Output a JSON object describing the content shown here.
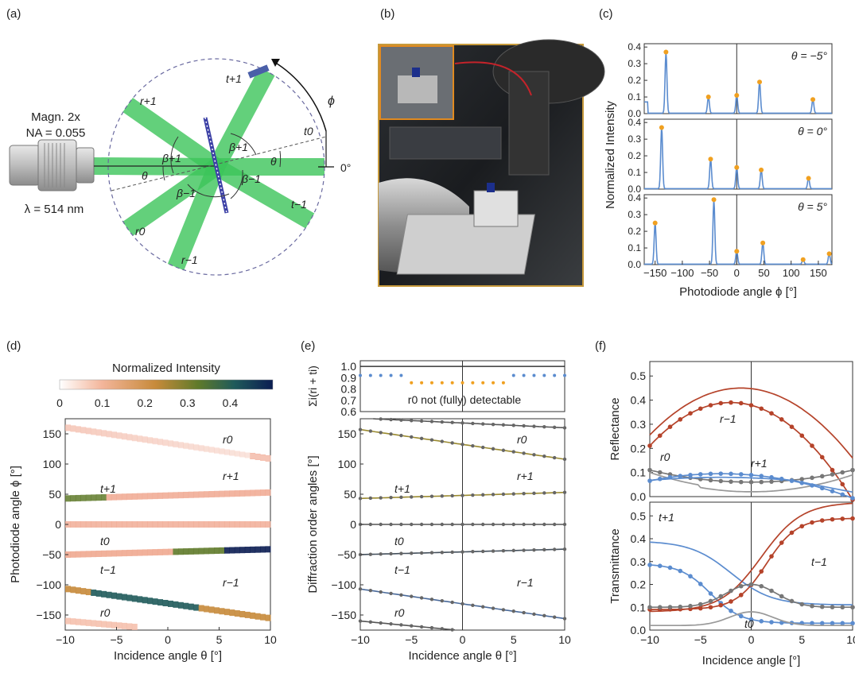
{
  "panel_labels": {
    "a": "(a)",
    "b": "(b)",
    "c": "(c)",
    "d": "(d)",
    "e": "(e)",
    "f": "(f)"
  },
  "colors": {
    "beam": "#3cc45a",
    "blue": "#5b8ccf",
    "orange": "#f0a020",
    "brown": "#b5432a",
    "gray": "#8a8a8a",
    "olive": "#9a8a30",
    "navy": "#102c5c"
  },
  "panel_a": {
    "objective_line1": "Magn. 2x",
    "objective_line2": "NA = 0.055",
    "wavelength": "λ = 514 nm",
    "phi": "ϕ",
    "zero_deg": "0°",
    "theta": "θ",
    "orders": {
      "t_p1": "t+1",
      "r_p1": "r+1",
      "t0": "t0",
      "r0": "r0",
      "t_m1": "t−1",
      "r_m1": "r−1"
    },
    "angles": {
      "beta_p1_a": "β+1",
      "beta_p1_b": "β+1",
      "beta_m1_a": "β−1",
      "beta_m1_b": "β−1",
      "theta_b": "θ"
    }
  },
  "chart_data": [
    {
      "id": "c",
      "type": "line",
      "xlabel": "Photodiode angle ϕ [°]",
      "ylabel": "Normalized Intensity",
      "xlim": [
        -170,
        175
      ],
      "ylim": [
        0,
        0.42
      ],
      "xticks": [
        "−150",
        "−100",
        "−50",
        "0",
        "50",
        "100",
        "150"
      ],
      "yticks": [
        "0.0",
        "0.1",
        "0.2",
        "0.3",
        "0.4"
      ],
      "subplots": [
        {
          "label": "θ = −5°",
          "peaks": [
            [
              -130,
              0.37
            ],
            [
              -52,
              0.1
            ],
            [
              0,
              0.11
            ],
            [
              42,
              0.19
            ],
            [
              140,
              0.085
            ]
          ]
        },
        {
          "label": "θ = 0°",
          "peaks": [
            [
              -138,
              0.37
            ],
            [
              -48,
              0.18
            ],
            [
              0,
              0.13
            ],
            [
              45,
              0.115
            ],
            [
              132,
              0.065
            ]
          ]
        },
        {
          "label": "θ = 5°",
          "peaks": [
            [
              -150,
              0.25
            ],
            [
              -42,
              0.39
            ],
            [
              0,
              0.08
            ],
            [
              48,
              0.13
            ],
            [
              122,
              0.03
            ],
            [
              170,
              0.065
            ]
          ]
        }
      ]
    },
    {
      "id": "d",
      "type": "heatmap",
      "title": "Normalized Intensity",
      "colorbar_ticks": [
        "0",
        "0.1",
        "0.2",
        "0.3",
        "0.4"
      ],
      "xlabel": "Incidence angle θ [°]",
      "ylabel": "Photodiode angle ϕ [°]",
      "xlim": [
        -10,
        10
      ],
      "ylim": [
        -175,
        175
      ],
      "xticks": [
        "−10",
        "−5",
        "0",
        "5",
        "10"
      ],
      "yticks": [
        "150",
        "100",
        "50",
        "0",
        "−50",
        "−100",
        "−150"
      ],
      "labels": {
        "r0_top": "r0",
        "r_p1": "r+1",
        "t_p1": "t+1",
        "t0": "t0",
        "t_m1": "t−1",
        "r_m1": "r−1",
        "r0_bot": "r0"
      }
    },
    {
      "id": "e",
      "type": "line",
      "top": {
        "ylabel": "Σi(ri + ti)",
        "ylim": [
          0.6,
          1.05
        ],
        "yticks": [
          "1.0",
          "0.9",
          "0.8",
          "0.7",
          "0.6"
        ],
        "note": "r0 not (fully) detectable",
        "points_blue": [
          -10,
          -9,
          -8,
          -7,
          -6,
          5,
          6,
          7,
          8,
          9,
          10
        ],
        "blue_value": 0.92,
        "points_orange": [
          -5,
          -4,
          -3,
          -2,
          -1,
          0,
          1,
          2,
          3,
          4
        ],
        "orange_value": 0.855
      },
      "bottom": {
        "xlabel": "Incidence angle θ [°]",
        "ylabel": "Diffraction order angles [°]",
        "xlim": [
          -10,
          10
        ],
        "ylim": [
          -175,
          175
        ],
        "xticks": [
          "−10",
          "−5",
          "0",
          "5",
          "10"
        ],
        "yticks": [
          "150",
          "100",
          "50",
          "0",
          "−50",
          "−100",
          "−150"
        ],
        "labels": {
          "r0_top": "r0",
          "r_p1": "r+1",
          "t_p1": "t+1",
          "t0": "t0",
          "t_m1": "t−1",
          "r_m1": "r−1",
          "r0_bot": "r0"
        }
      }
    },
    {
      "id": "f",
      "type": "line",
      "top": {
        "ylabel": "Reflectance",
        "ylim": [
          0,
          0.56
        ],
        "yticks": [
          "0.5",
          "0.4",
          "0.3",
          "0.2",
          "0.1",
          "0.0"
        ],
        "labels": {
          "r_m1": "r−1",
          "r0": "r0",
          "r_p1": "r+1"
        }
      },
      "bottom": {
        "ylabel": "Transmittance",
        "xlabel": "Incidence angle [°]",
        "xlim": [
          -10,
          10
        ],
        "ylim": [
          0,
          0.56
        ],
        "xticks": [
          "−10",
          "−5",
          "0",
          "5",
          "10"
        ],
        "yticks": [
          "0.5",
          "0.4",
          "0.3",
          "0.2",
          "0.1",
          "0.0"
        ],
        "labels": {
          "t_p1": "t+1",
          "t_m1": "t−1",
          "t0": "t0"
        }
      }
    }
  ]
}
